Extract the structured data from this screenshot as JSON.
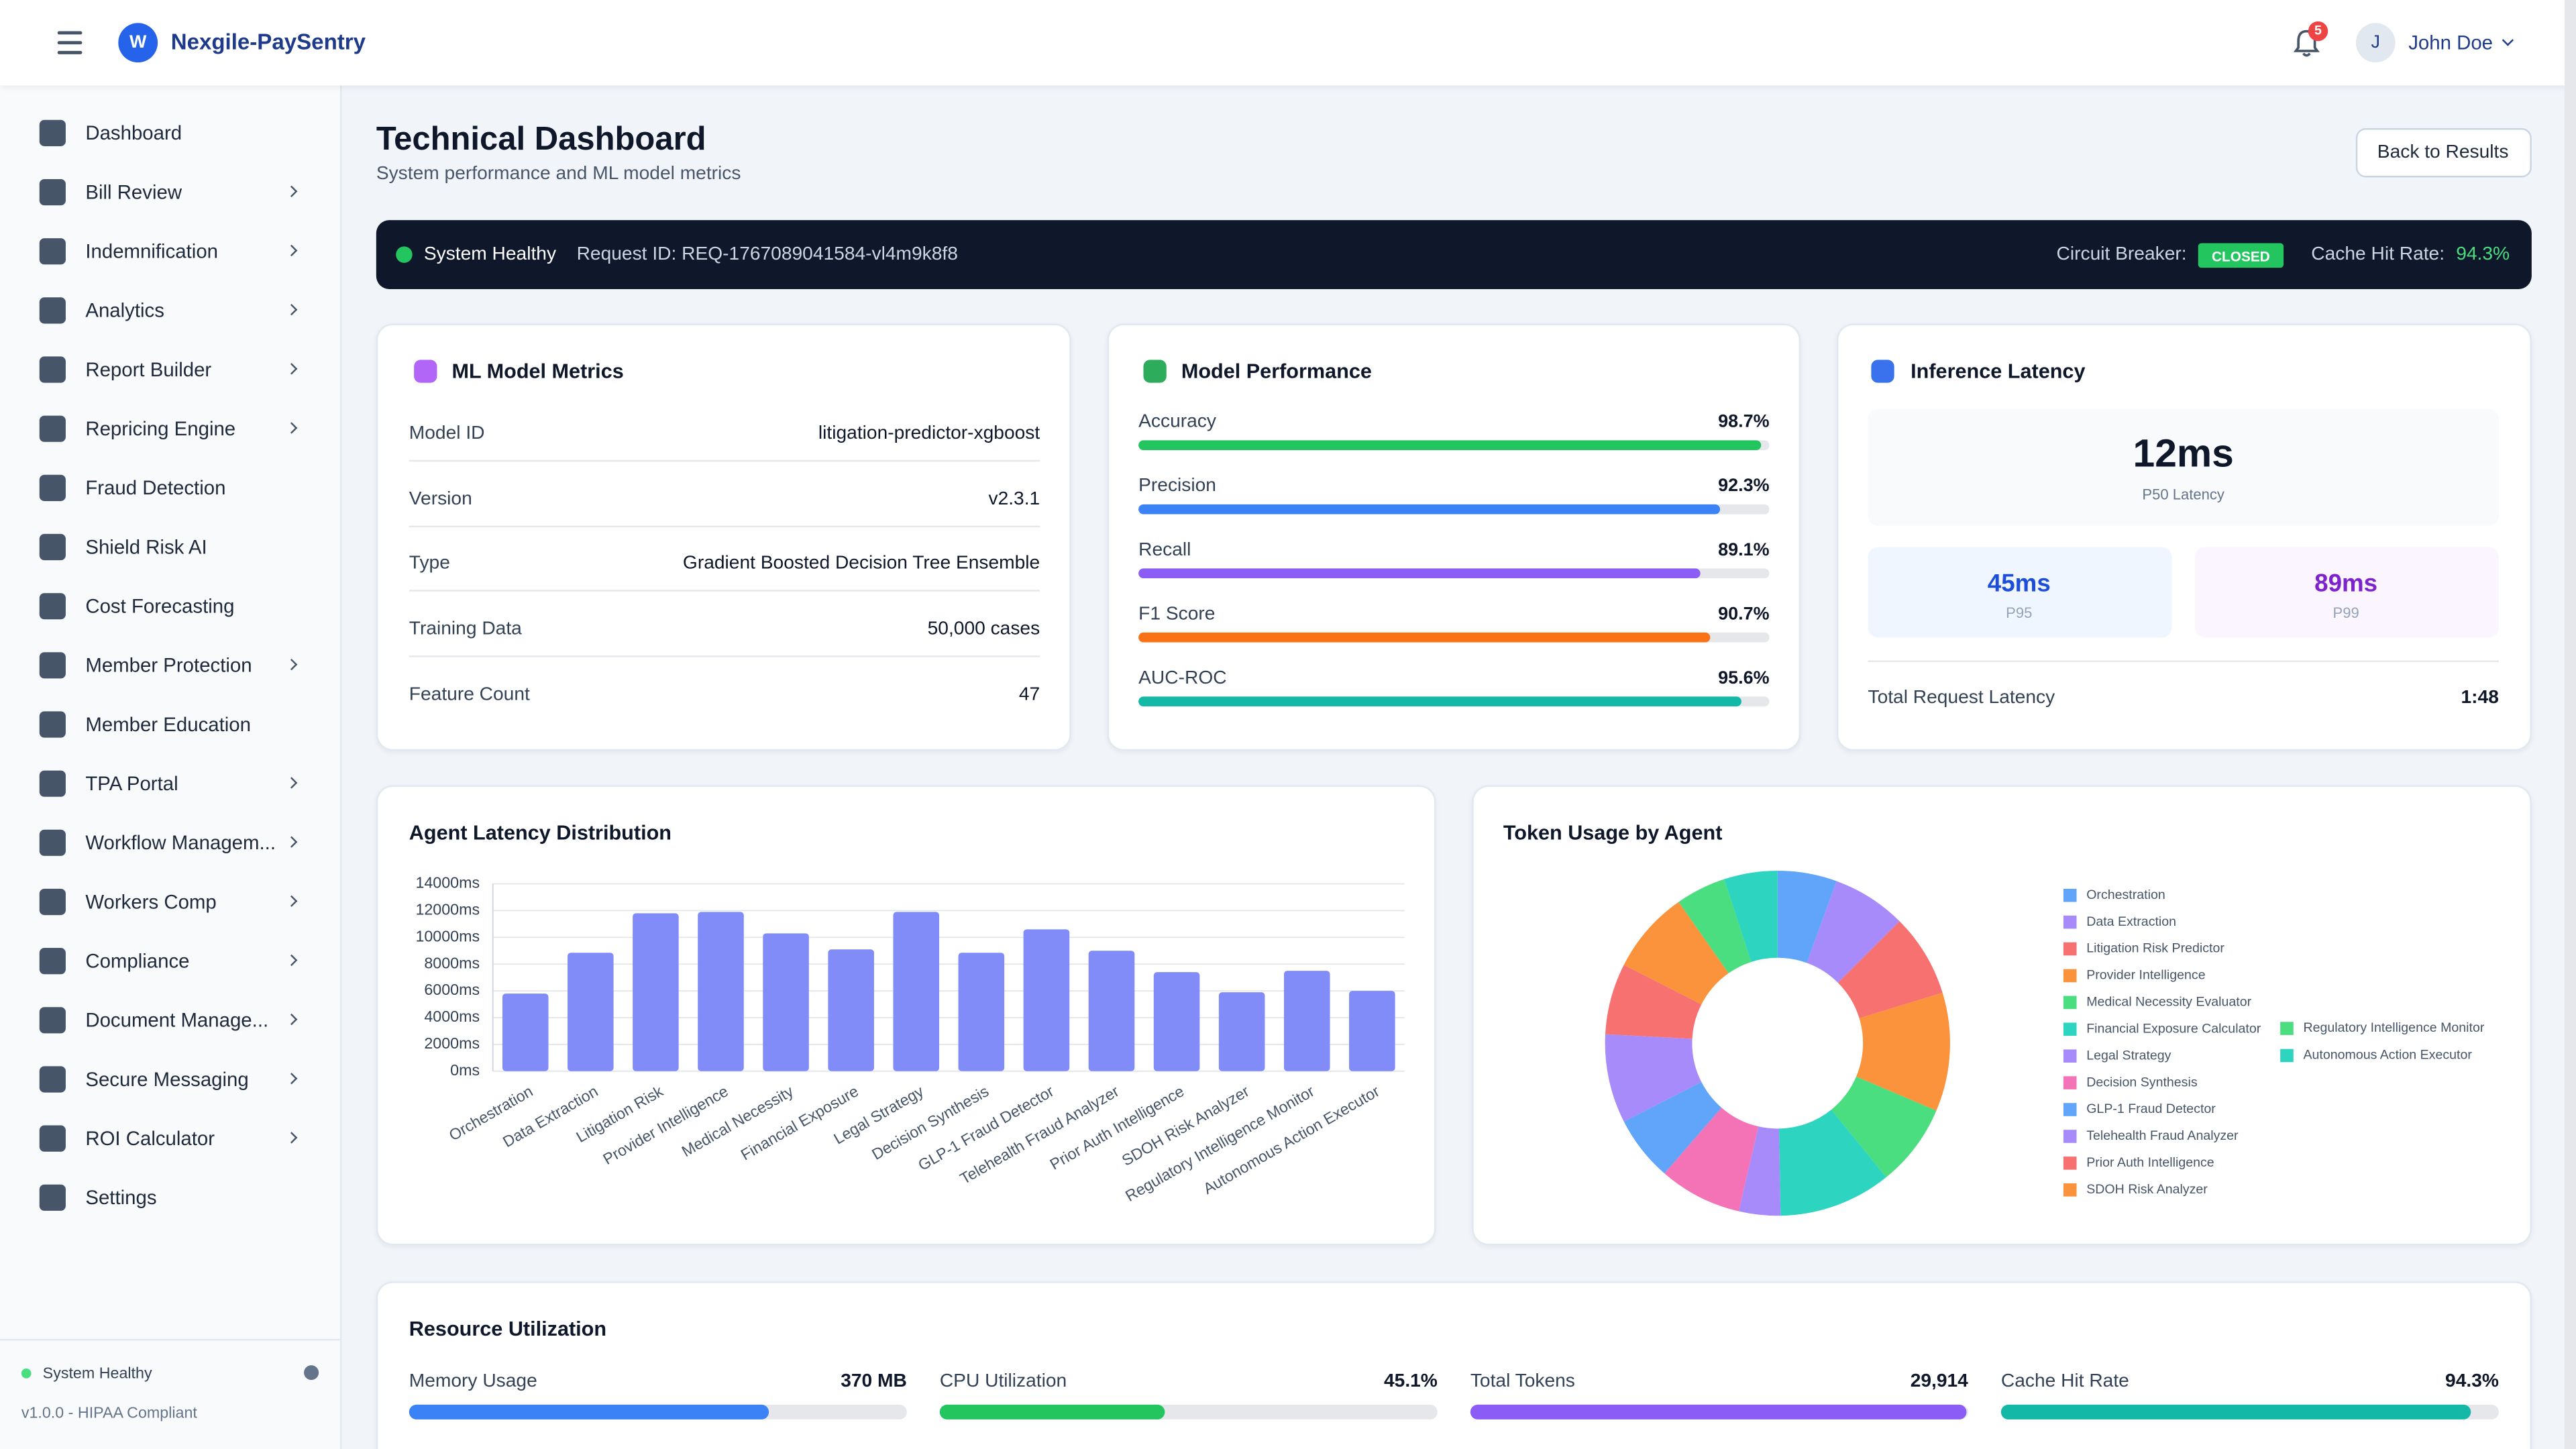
{
  "header": {
    "logo_letter": "W",
    "app_name": "Nexgile-PaySentry",
    "notification_count": "5",
    "user_initial": "J",
    "user_name": "John Doe"
  },
  "sidebar": {
    "items": [
      {
        "label": "Dashboard",
        "expandable": false
      },
      {
        "label": "Bill Review",
        "expandable": true
      },
      {
        "label": "Indemnification",
        "expandable": true
      },
      {
        "label": "Analytics",
        "expandable": true
      },
      {
        "label": "Report Builder",
        "expandable": true
      },
      {
        "label": "Repricing Engine",
        "expandable": true
      },
      {
        "label": "Fraud Detection",
        "expandable": false
      },
      {
        "label": "Shield Risk AI",
        "expandable": false
      },
      {
        "label": "Cost Forecasting",
        "expandable": false
      },
      {
        "label": "Member Protection",
        "expandable": true
      },
      {
        "label": "Member Education",
        "expandable": false
      },
      {
        "label": "TPA Portal",
        "expandable": true
      },
      {
        "label": "Workflow Managem...",
        "expandable": true
      },
      {
        "label": "Workers Comp",
        "expandable": true
      },
      {
        "label": "Compliance",
        "expandable": true
      },
      {
        "label": "Document Manage...",
        "expandable": true
      },
      {
        "label": "Secure Messaging",
        "expandable": true
      },
      {
        "label": "ROI Calculator",
        "expandable": true
      },
      {
        "label": "Settings",
        "expandable": false
      }
    ],
    "status": "System Healthy",
    "version": "v1.0.0 - HIPAA Compliant"
  },
  "page": {
    "title": "Technical Dashboard",
    "subtitle": "System performance and ML model metrics",
    "back_button": "Back to Results"
  },
  "status_bar": {
    "status": "System Healthy",
    "request_id": "Request ID: REQ-1767089041584-vl4m9k8f8",
    "circuit_label": "Circuit Breaker:",
    "circuit_value": "CLOSED",
    "cache_label": "Cache Hit Rate:",
    "cache_value": "94.3%"
  },
  "ml_metrics": {
    "title": "ML Model Metrics",
    "rows": [
      [
        "Model ID",
        "litigation-predictor-xgboost"
      ],
      [
        "Version",
        "v2.3.1"
      ],
      [
        "Type",
        "Gradient Boosted Decision Tree Ensemble"
      ],
      [
        "Training Data",
        "50,000 cases"
      ],
      [
        "Feature Count",
        "47"
      ]
    ]
  },
  "model_performance": {
    "title": "Model Performance",
    "type": "bar",
    "xlim": [
      0,
      100
    ],
    "metrics": [
      {
        "name": "Accuracy",
        "value": 98.7,
        "value_label": "98.7%",
        "color": "#22c55e"
      },
      {
        "name": "Precision",
        "value": 92.3,
        "value_label": "92.3%",
        "color": "#3b82f6"
      },
      {
        "name": "Recall",
        "value": 89.1,
        "value_label": "89.1%",
        "color": "#8b5cf6"
      },
      {
        "name": "F1 Score",
        "value": 90.7,
        "value_label": "90.7%",
        "color": "#f97316"
      },
      {
        "name": "AUC-ROC",
        "value": 95.6,
        "value_label": "95.6%",
        "color": "#14b8a6"
      }
    ]
  },
  "inference_latency": {
    "title": "Inference Latency",
    "p50": "12ms",
    "p50_label": "P50 Latency",
    "p95": "45ms",
    "p95_label": "P95",
    "p99": "89ms",
    "p99_label": "P99",
    "total_label": "Total Request Latency",
    "total_value": "1:48"
  },
  "latency_chart": {
    "type": "bar",
    "title": "Agent Latency Distribution",
    "color": "#818cf8",
    "grid": true,
    "categories": [
      "Orchestration",
      "Data Extraction",
      "Litigation Risk",
      "Provider Intelligence",
      "Medical Necessity",
      "Financial Exposure",
      "Legal Strategy",
      "Decision Synthesis",
      "GLP-1 Fraud Detector",
      "Telehealth Fraud Analyzer",
      "Prior Auth Intelligence",
      "SDOH Risk Analyzer",
      "Regulatory Intelligence Monitor",
      "Autonomous Action Executor"
    ],
    "values": [
      5800,
      8850,
      11800,
      11900,
      10300,
      9100,
      11900,
      8850,
      10600,
      9000,
      7400,
      5900,
      7500,
      6000
    ],
    "ylim": [
      0,
      14000
    ],
    "yticks": [
      {
        "value": 0,
        "label": "0ms"
      },
      {
        "value": 2000,
        "label": "2000ms"
      },
      {
        "value": 4000,
        "label": "4000ms"
      },
      {
        "value": 6000,
        "label": "6000ms"
      },
      {
        "value": 8000,
        "label": "8000ms"
      },
      {
        "value": 10000,
        "label": "10000ms"
      },
      {
        "value": 12000,
        "label": "12000ms"
      },
      {
        "value": 14000,
        "label": "14000ms"
      }
    ]
  },
  "token_chart": {
    "type": "pie",
    "title": "Token Usage by Agent",
    "donut": true,
    "categories": [
      "Orchestration",
      "Data Extraction",
      "Litigation Risk Predictor",
      "Provider Intelligence",
      "Medical Necessity Evaluator",
      "Financial Exposure Calculator",
      "Legal Strategy",
      "Decision Synthesis",
      "GLP-1 Fraud Detector",
      "Telehealth Fraud Analyzer",
      "Prior Auth Intelligence",
      "SDOH Risk Analyzer",
      "Regulatory Intelligence Monitor",
      "Autonomous Action Executor"
    ],
    "values": [
      1660,
      2075,
      2324,
      3320,
      2324,
      3154,
      1162,
      2324,
      1826,
      2490,
      1992,
      2324,
      1411,
      1494
    ],
    "colors": [
      "#60a5fa",
      "#a78bfa",
      "#f87171",
      "#fb923c",
      "#4ade80",
      "#2dd4bf",
      "#a78bfa",
      "#f472b6",
      "#60a5fa",
      "#a78bfa",
      "#f87171",
      "#fb923c",
      "#4ade80",
      "#2dd4bf"
    ]
  },
  "resource_utilization": {
    "title": "Resource Utilization",
    "items": [
      {
        "name": "Memory Usage",
        "value": 370,
        "value_label": "370 MB",
        "xlim": [
          0,
          512
        ],
        "color": "#3b82f6"
      },
      {
        "name": "CPU Utilization",
        "value": 45.1,
        "value_label": "45.1%",
        "xlim": [
          0,
          100
        ],
        "color": "#22c55e"
      },
      {
        "name": "Total Tokens",
        "value": 29914,
        "value_label": "29,914",
        "xlim": [
          0,
          30000
        ],
        "color": "#8b5cf6"
      },
      {
        "name": "Cache Hit Rate",
        "value": 94.3,
        "value_label": "94.3%",
        "xlim": [
          0,
          100
        ],
        "color": "#14b8a6"
      }
    ]
  }
}
